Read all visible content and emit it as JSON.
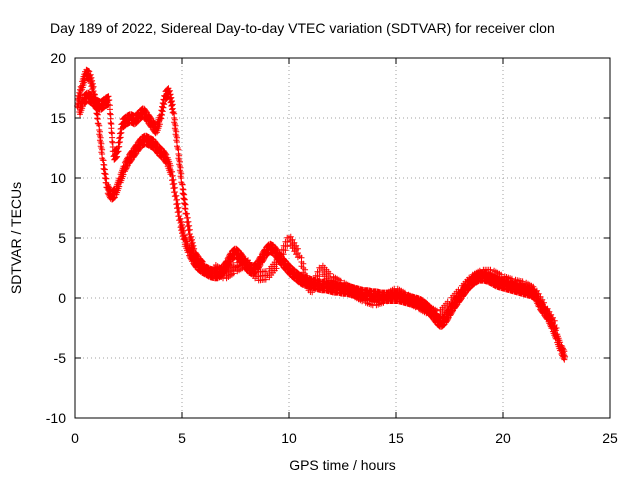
{
  "chart_data": {
    "type": "scatter",
    "title": "Day 189 of 2022, Sidereal Day-to-day VTEC variation (SDTVAR) for receiver clon",
    "xlabel": "GPS time / hours",
    "ylabel": "SDTVAR / TECUs",
    "xlim": [
      0,
      25
    ],
    "ylim": [
      -10,
      20
    ],
    "x_ticks": [
      0,
      5,
      10,
      15,
      20,
      25
    ],
    "y_ticks": [
      -10,
      -5,
      0,
      5,
      10,
      15,
      20
    ],
    "x_tick_labels": [
      "0",
      "5",
      "10",
      "15",
      "20",
      "25"
    ],
    "y_tick_labels": [
      "-10",
      "-5",
      "0",
      "5",
      "10",
      "15",
      "20"
    ],
    "grid": true,
    "marker": "+",
    "series": [
      {
        "name": "SDTVAR",
        "color": "#ff0000",
        "marker": "+",
        "tracks": [
          {
            "name": "main-track",
            "x": [
              0.1,
              0.3,
              0.5,
              0.7,
              0.9,
              1.1,
              1.3,
              1.5,
              1.7,
              1.9,
              2.1,
              2.3,
              2.5,
              2.7,
              2.9,
              3.1,
              3.3,
              3.5,
              3.7,
              3.9,
              4.1,
              4.3,
              4.5,
              4.7,
              4.9,
              5.1,
              5.3,
              5.5,
              5.7,
              5.9,
              6.1,
              6.3,
              6.5,
              6.7,
              6.9,
              7.1,
              7.3,
              7.5,
              7.7,
              7.9,
              8.1,
              8.3,
              8.5,
              8.7,
              8.9,
              9.1,
              9.3,
              9.5,
              9.7,
              9.9,
              10.1,
              10.3,
              10.5,
              10.7,
              10.9,
              11.1,
              11.3,
              11.5,
              11.7,
              11.9,
              12.1,
              12.3,
              12.5,
              12.7,
              12.9,
              13.1,
              13.3,
              13.5,
              13.7,
              13.9,
              14.1,
              14.3,
              14.5,
              14.7,
              14.9,
              15.1,
              15.3,
              15.5,
              15.7,
              15.9,
              16.1,
              16.3,
              16.5,
              16.7,
              16.9,
              17.1,
              17.3,
              17.5,
              17.7,
              17.9,
              18.1,
              18.3,
              18.5,
              18.7,
              18.9,
              19.1,
              19.3,
              19.5,
              19.7,
              19.9,
              20.1,
              20.3,
              20.5,
              20.7,
              20.9,
              21.1,
              21.3,
              21.5,
              21.7,
              21.9,
              22.1,
              22.3,
              22.5,
              22.7,
              22.9
            ],
            "y": [
              16.0,
              17.5,
              18.7,
              18.5,
              17.0,
              14.5,
              11.5,
              9.2,
              8.5,
              8.8,
              9.8,
              10.8,
              11.5,
              12.0,
              12.5,
              13.0,
              13.2,
              13.0,
              12.8,
              12.3,
              12.0,
              11.5,
              10.5,
              8.5,
              6.5,
              5.0,
              4.0,
              3.3,
              2.8,
              2.5,
              2.3,
              2.1,
              2.0,
              2.0,
              2.3,
              2.8,
              3.5,
              3.8,
              3.5,
              3.0,
              2.5,
              2.3,
              2.6,
              3.2,
              3.8,
              4.2,
              4.0,
              3.5,
              3.0,
              2.6,
              2.2,
              1.9,
              1.6,
              1.4,
              1.3,
              1.2,
              1.1,
              1.0,
              1.0,
              0.9,
              0.8,
              0.8,
              0.7,
              0.7,
              0.6,
              0.5,
              0.4,
              0.3,
              0.3,
              0.2,
              0.2,
              0.1,
              0.1,
              0.1,
              0.1,
              0.1,
              0.0,
              -0.1,
              -0.2,
              -0.3,
              -0.4,
              -0.6,
              -0.9,
              -1.3,
              -1.8,
              -2.1,
              -1.8,
              -1.2,
              -0.6,
              -0.1,
              0.4,
              0.9,
              1.3,
              1.6,
              1.8,
              1.8,
              1.7,
              1.5,
              1.3,
              1.2,
              1.1,
              1.0,
              0.9,
              0.8,
              0.7,
              0.6,
              0.5,
              0.3,
              -0.5,
              -1.0,
              -1.5,
              -2.3,
              -3.2,
              -4.2,
              -4.9
            ]
          },
          {
            "name": "upper-track",
            "x": [
              0.2,
              0.4,
              0.6,
              0.8,
              1.0,
              1.2,
              1.4,
              1.6,
              1.8,
              2.0,
              2.2,
              2.4,
              2.6,
              2.8,
              3.0,
              3.2,
              3.4,
              3.6,
              3.8,
              4.0,
              4.2,
              4.4,
              4.6,
              4.8,
              5.0,
              5.2,
              5.4,
              5.6,
              5.8,
              6.0
            ],
            "y": [
              15.5,
              16.5,
              16.8,
              16.5,
              16.2,
              16.0,
              16.3,
              16.5,
              11.8,
              12.2,
              14.5,
              14.8,
              15.0,
              14.8,
              15.2,
              15.5,
              15.0,
              14.5,
              14.0,
              15.0,
              16.8,
              17.2,
              15.5,
              12.5,
              9.5,
              7.0,
              5.0,
              3.5,
              3.0,
              2.6
            ]
          },
          {
            "name": "lower-track",
            "x": [
              6.5,
              7.0,
              7.5,
              8.0,
              8.5,
              9.0,
              9.5,
              10.0,
              10.5,
              11.0,
              11.5,
              12.0,
              12.5,
              13.0,
              13.5,
              14.0,
              14.5,
              15.0,
              15.5,
              16.0,
              16.5,
              17.0,
              17.5,
              18.0,
              18.5,
              19.0,
              19.5,
              20.0,
              20.5,
              21.0,
              21.5,
              22.0,
              22.5
            ],
            "y": [
              2.5,
              1.9,
              2.5,
              3.0,
              1.8,
              1.9,
              3.0,
              5.0,
              3.5,
              0.5,
              2.5,
              1.5,
              1.0,
              0.5,
              0.0,
              -0.3,
              0.0,
              0.5,
              0.0,
              -0.5,
              -1.0,
              -1.5,
              -0.5,
              0.5,
              1.5,
              2.0,
              2.0,
              1.5,
              1.2,
              1.0,
              0.5,
              -1.0,
              -2.5
            ]
          }
        ]
      }
    ]
  }
}
